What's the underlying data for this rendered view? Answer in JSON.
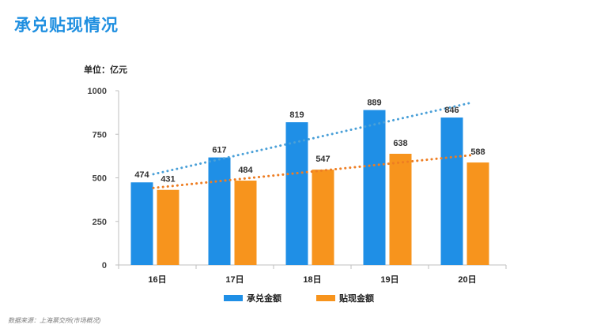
{
  "title": "承兑贴现情况",
  "source": "数据来源：上海票交所(市场概况)",
  "colors": {
    "title": "#1f8fe0",
    "acceptance": "#1f8fe6",
    "discount": "#f7941d",
    "acceptance_trend": "#4aa0d8",
    "discount_trend": "#ee7d22"
  },
  "chart_data": {
    "type": "bar",
    "unit_label": "单位：亿元",
    "categories": [
      "16日",
      "17日",
      "18日",
      "19日",
      "20日"
    ],
    "series": [
      {
        "name": "承兑金额",
        "values": [
          474,
          617,
          819,
          889,
          846
        ]
      },
      {
        "name": "贴现金额",
        "values": [
          431,
          484,
          547,
          638,
          588
        ]
      }
    ],
    "trendlines": [
      {
        "series": "承兑金额",
        "style": "dotted",
        "values": [
          521,
          624,
          726,
          829,
          931
        ]
      },
      {
        "series": "贴现金额",
        "style": "dotted",
        "values": [
          442,
          489,
          536,
          583,
          630
        ]
      }
    ],
    "ylim": [
      0,
      1000
    ],
    "yticks": [
      "0",
      "250",
      "500",
      "750",
      "1000"
    ],
    "ytick_values": [
      0,
      250,
      500,
      750,
      1000
    ],
    "grid": false,
    "legend_position": "bottom"
  }
}
